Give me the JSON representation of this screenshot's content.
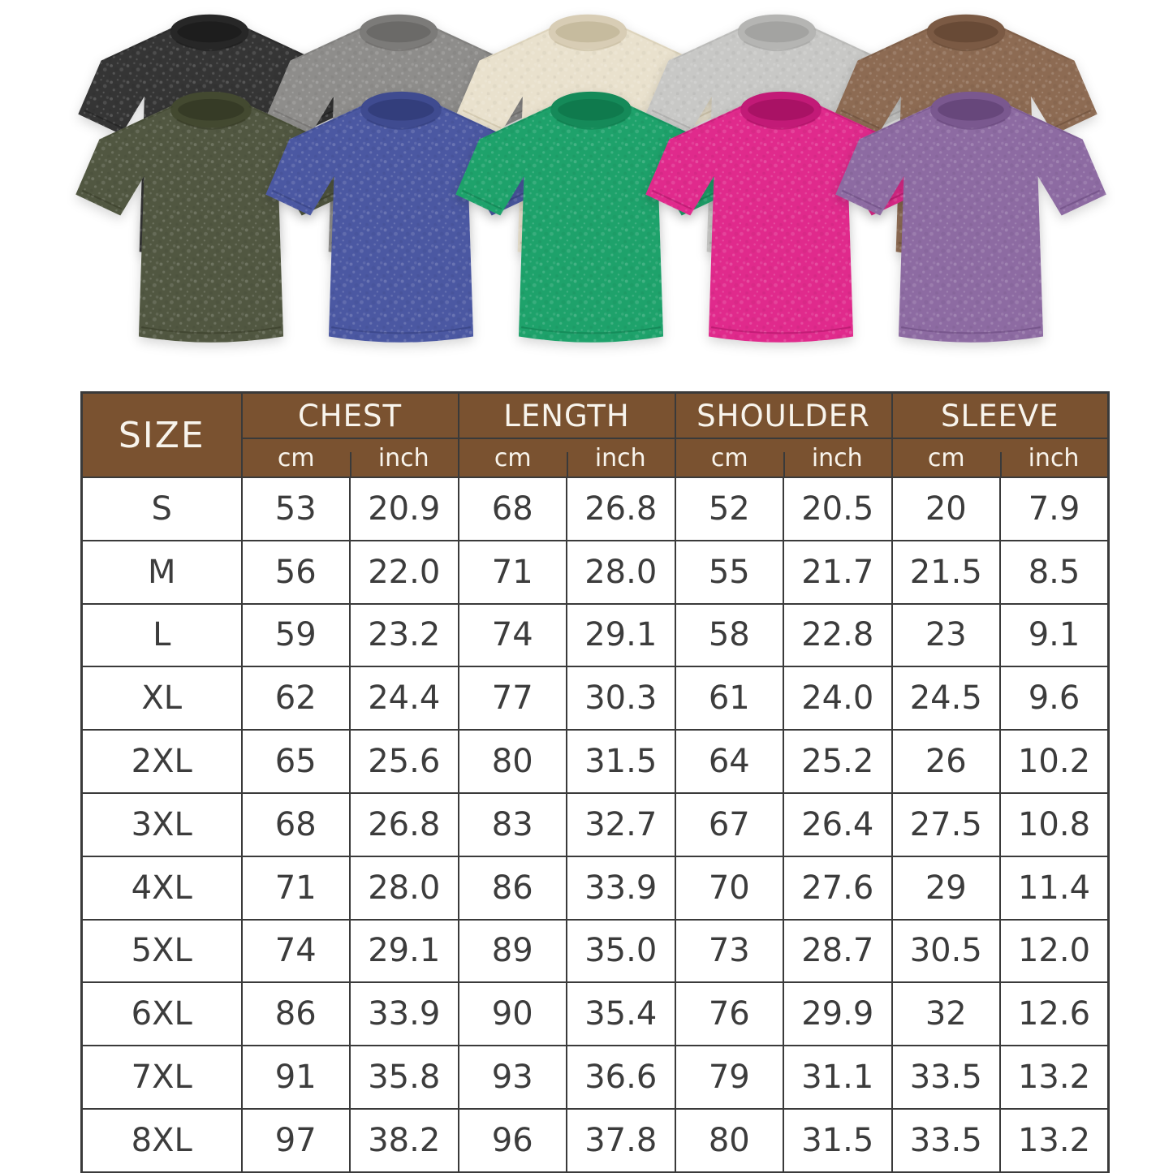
{
  "header_bg_color": "#7a5230",
  "grid_color": "#3a3a3a",
  "shirts": [
    {
      "name": "washed-black",
      "row": "back",
      "fill": "#353535",
      "band": "#272727",
      "dark": "#1d1d1d"
    },
    {
      "name": "washed-gray",
      "row": "back",
      "fill": "#8e8d8b",
      "band": "#7c7b79",
      "dark": "#6b6a68"
    },
    {
      "name": "washed-cream",
      "row": "back",
      "fill": "#e9e1cd",
      "band": "#d8cdb5",
      "dark": "#c6bb9e"
    },
    {
      "name": "washed-light-gray",
      "row": "back",
      "fill": "#c8c8c6",
      "band": "#b5b5b3",
      "dark": "#a3a3a1"
    },
    {
      "name": "washed-brown",
      "row": "back",
      "fill": "#8d6b53",
      "band": "#7b5a44",
      "dark": "#684a36"
    },
    {
      "name": "washed-army-green",
      "row": "front",
      "fill": "#515741",
      "band": "#434930",
      "dark": "#363b26"
    },
    {
      "name": "washed-blue",
      "row": "front",
      "fill": "#4b58a2",
      "band": "#3f4b90",
      "dark": "#333e7c"
    },
    {
      "name": "washed-green",
      "row": "front",
      "fill": "#1ea26b",
      "band": "#158a59",
      "dark": "#0f7a4d"
    },
    {
      "name": "washed-hot-pink",
      "row": "front",
      "fill": "#e02a8c",
      "band": "#c21a77",
      "dark": "#a91265"
    },
    {
      "name": "washed-purple",
      "row": "front",
      "fill": "#8d6ba2",
      "band": "#7a588f",
      "dark": "#67477b"
    }
  ],
  "table": {
    "size_label": "SIZE",
    "unit_cm": "cm",
    "unit_inch": "inch",
    "groups": [
      {
        "label": "CHEST"
      },
      {
        "label": "LENGTH"
      },
      {
        "label": "SHOULDER"
      },
      {
        "label": "SLEEVE"
      }
    ],
    "rows": [
      {
        "size": "S",
        "values": [
          "53",
          "20.9",
          "68",
          "26.8",
          "52",
          "20.5",
          "20",
          "7.9"
        ]
      },
      {
        "size": "M",
        "values": [
          "56",
          "22.0",
          "71",
          "28.0",
          "55",
          "21.7",
          "21.5",
          "8.5"
        ]
      },
      {
        "size": "L",
        "values": [
          "59",
          "23.2",
          "74",
          "29.1",
          "58",
          "22.8",
          "23",
          "9.1"
        ]
      },
      {
        "size": "XL",
        "values": [
          "62",
          "24.4",
          "77",
          "30.3",
          "61",
          "24.0",
          "24.5",
          "9.6"
        ]
      },
      {
        "size": "2XL",
        "values": [
          "65",
          "25.6",
          "80",
          "31.5",
          "64",
          "25.2",
          "26",
          "10.2"
        ]
      },
      {
        "size": "3XL",
        "values": [
          "68",
          "26.8",
          "83",
          "32.7",
          "67",
          "26.4",
          "27.5",
          "10.8"
        ]
      },
      {
        "size": "4XL",
        "values": [
          "71",
          "28.0",
          "86",
          "33.9",
          "70",
          "27.6",
          "29",
          "11.4"
        ]
      },
      {
        "size": "5XL",
        "values": [
          "74",
          "29.1",
          "89",
          "35.0",
          "73",
          "28.7",
          "30.5",
          "12.0"
        ]
      },
      {
        "size": "6XL",
        "values": [
          "86",
          "33.9",
          "90",
          "35.4",
          "76",
          "29.9",
          "32",
          "12.6"
        ]
      },
      {
        "size": "7XL",
        "values": [
          "91",
          "35.8",
          "93",
          "36.6",
          "79",
          "31.1",
          "33.5",
          "13.2"
        ]
      },
      {
        "size": "8XL",
        "values": [
          "97",
          "38.2",
          "96",
          "37.8",
          "80",
          "31.5",
          "33.5",
          "13.2"
        ]
      }
    ]
  },
  "chart_data": {
    "type": "table",
    "title": "",
    "columns": [
      "SIZE",
      "CHEST cm",
      "CHEST inch",
      "LENGTH cm",
      "LENGTH inch",
      "SHOULDER cm",
      "SHOULDER inch",
      "SLEEVE cm",
      "SLEEVE inch"
    ],
    "rows": [
      [
        "S",
        53,
        20.9,
        68,
        26.8,
        52,
        20.5,
        20,
        7.9
      ],
      [
        "M",
        56,
        22.0,
        71,
        28.0,
        55,
        21.7,
        21.5,
        8.5
      ],
      [
        "L",
        59,
        23.2,
        74,
        29.1,
        58,
        22.8,
        23,
        9.1
      ],
      [
        "XL",
        62,
        24.4,
        77,
        30.3,
        61,
        24.0,
        24.5,
        9.6
      ],
      [
        "2XL",
        65,
        25.6,
        80,
        31.5,
        64,
        25.2,
        26,
        10.2
      ],
      [
        "3XL",
        68,
        26.8,
        83,
        32.7,
        67,
        26.4,
        27.5,
        10.8
      ],
      [
        "4XL",
        71,
        28.0,
        86,
        33.9,
        70,
        27.6,
        29,
        11.4
      ],
      [
        "5XL",
        74,
        29.1,
        89,
        35.0,
        73,
        28.7,
        30.5,
        12.0
      ],
      [
        "6XL",
        86,
        33.9,
        90,
        35.4,
        76,
        29.9,
        32,
        12.6
      ],
      [
        "7XL",
        91,
        35.8,
        93,
        36.6,
        79,
        31.1,
        33.5,
        13.2
      ],
      [
        "8XL",
        97,
        38.2,
        96,
        37.8,
        80,
        31.5,
        33.5,
        13.2
      ]
    ]
  }
}
